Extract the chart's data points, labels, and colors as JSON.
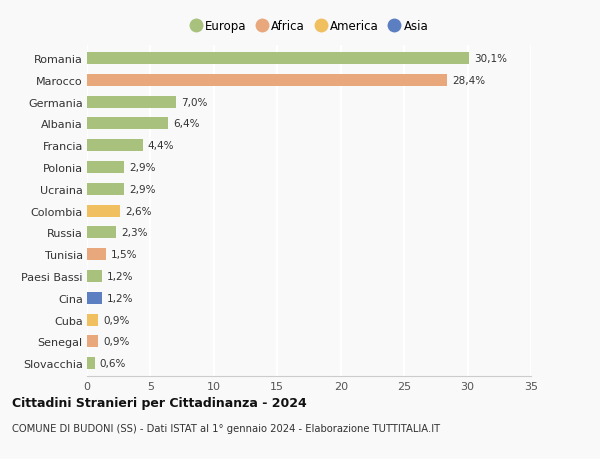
{
  "categories": [
    "Romania",
    "Marocco",
    "Germania",
    "Albania",
    "Francia",
    "Polonia",
    "Ucraina",
    "Colombia",
    "Russia",
    "Tunisia",
    "Paesi Bassi",
    "Cina",
    "Cuba",
    "Senegal",
    "Slovacchia"
  ],
  "values": [
    30.1,
    28.4,
    7.0,
    6.4,
    4.4,
    2.9,
    2.9,
    2.6,
    2.3,
    1.5,
    1.2,
    1.2,
    0.9,
    0.9,
    0.6
  ],
  "labels": [
    "30,1%",
    "28,4%",
    "7,0%",
    "6,4%",
    "4,4%",
    "2,9%",
    "2,9%",
    "2,6%",
    "2,3%",
    "1,5%",
    "1,2%",
    "1,2%",
    "0,9%",
    "0,9%",
    "0,6%"
  ],
  "continents": [
    "Europa",
    "Africa",
    "Europa",
    "Europa",
    "Europa",
    "Europa",
    "Europa",
    "America",
    "Europa",
    "Africa",
    "Europa",
    "Asia",
    "America",
    "Africa",
    "Europa"
  ],
  "colors": {
    "Europa": "#a8c17c",
    "Africa": "#e8a87c",
    "America": "#f0c060",
    "Asia": "#5b7fc1"
  },
  "legend_items": [
    "Europa",
    "Africa",
    "America",
    "Asia"
  ],
  "xlim": [
    0,
    35
  ],
  "xticks": [
    0,
    5,
    10,
    15,
    20,
    25,
    30,
    35
  ],
  "title": "Cittadini Stranieri per Cittadinanza - 2024",
  "subtitle": "COMUNE DI BUDONI (SS) - Dati ISTAT al 1° gennaio 2024 - Elaborazione TUTTITALIA.IT",
  "background_color": "#f9f9f9",
  "grid_color": "#ffffff",
  "bar_height": 0.55
}
